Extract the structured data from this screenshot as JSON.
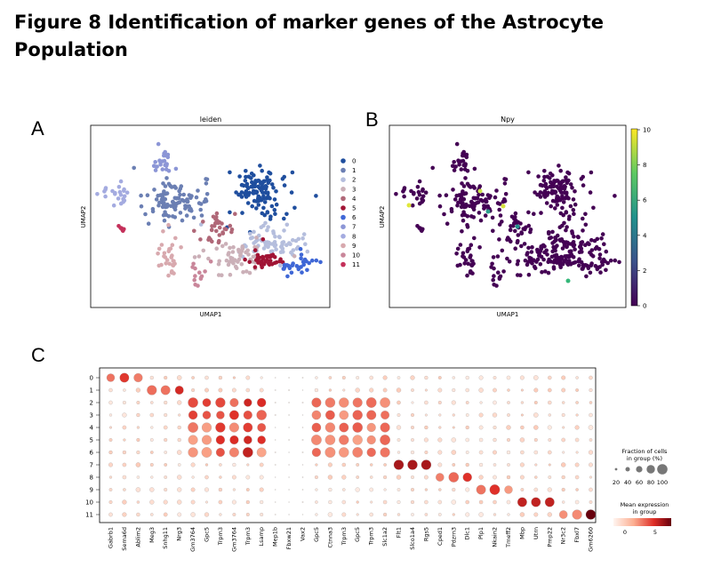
{
  "figure": {
    "title": "Figure 8 Identification of marker genes of the Astrocyte Population",
    "panel_a": "A",
    "panel_b": "B",
    "panel_c": "C"
  },
  "chart_data": [
    {
      "type": "scatter",
      "title": "leiden",
      "xlabel": "UMAP1",
      "ylabel": "UMAP2",
      "legend_placement": "right",
      "clusters": [
        "0",
        "1",
        "2",
        "3",
        "4",
        "5",
        "6",
        "7",
        "8",
        "9",
        "10",
        "11"
      ],
      "colors": [
        "#1f4e9e",
        "#6b7fb3",
        "#b5bedd",
        "#cbb0b8",
        "#b06878",
        "#a11435",
        "#3f67d6",
        "#8c96d6",
        "#a4abe0",
        "#d8a9ae",
        "#c9869a",
        "#c4305a"
      ]
    },
    {
      "type": "scatter",
      "title": "Npy",
      "xlabel": "UMAP1",
      "ylabel": "UMAP2",
      "colorbar": {
        "ticks": [
          "0",
          "2",
          "4",
          "6",
          "8",
          "10"
        ],
        "range": [
          0,
          10
        ]
      },
      "point_color": "#440154"
    },
    {
      "type": "dotplot",
      "genes": [
        "Gabrb1",
        "Sema6d",
        "Ablim2",
        "Meg3",
        "Snhg11",
        "Nrg3",
        "Gm3764",
        "Gpc5",
        "Trpm3",
        "Gm3764",
        "Trpm3",
        "Lsamp",
        "Mep1b",
        "Fbxw21",
        "Vax2",
        "Gpc5",
        "Ctnna3",
        "Trpm3",
        "Gpc5",
        "Trpm3",
        "Slc1a2",
        "Flt1",
        "Slco1a4",
        "Rgs5",
        "Cped1",
        "Pdzrn3",
        "Dlc1",
        "Plp1",
        "Nkain2",
        "Tmeff2",
        "Mbp",
        "Utrn",
        "Pmp22",
        "Nr3c2",
        "Fbxl7",
        "Gm6260"
      ],
      "clusters": [
        "0",
        "1",
        "2",
        "3",
        "4",
        "5",
        "6",
        "7",
        "8",
        "9",
        "10",
        "11"
      ],
      "size_legend": {
        "title_line1": "Fraction of cells",
        "title_line2": "in group (%)",
        "ticks": [
          "20",
          "40",
          "60",
          "80",
          "100"
        ]
      },
      "color_legend": {
        "title_line1": "Mean expression",
        "title_line2": "in group",
        "ticks": [
          "0",
          "5"
        ]
      }
    }
  ]
}
